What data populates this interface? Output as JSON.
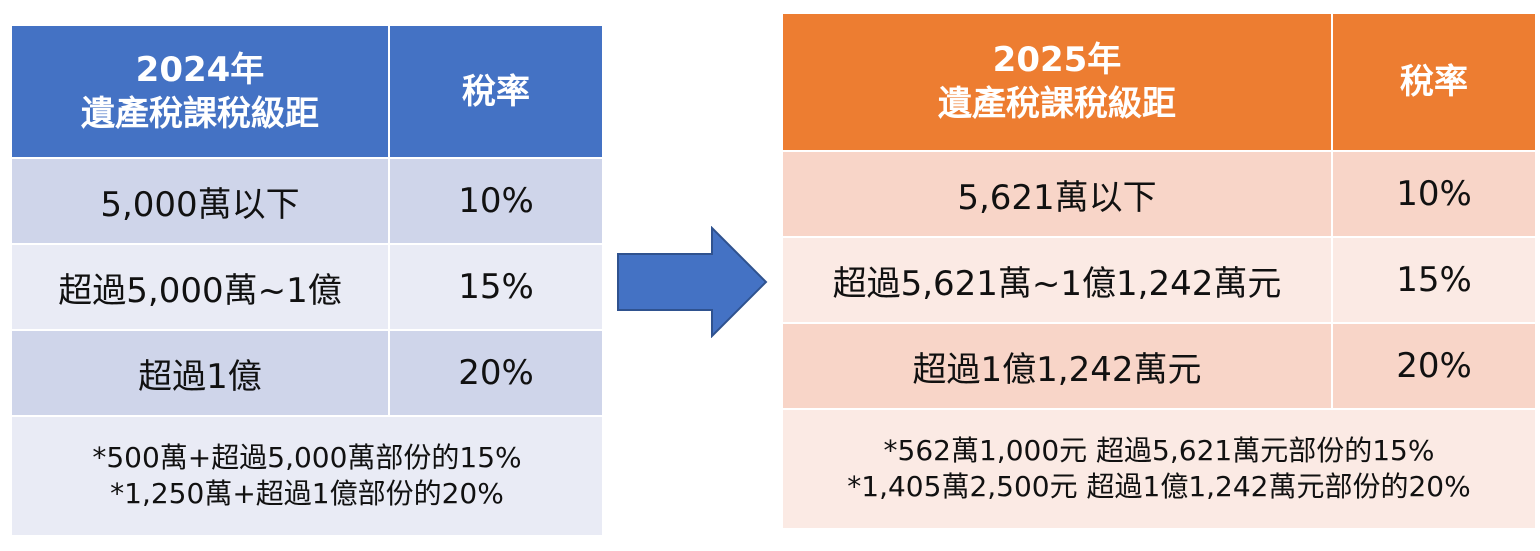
{
  "left_table": {
    "header": {
      "col1_line1": "2024年",
      "col1_line2": "遺產稅課稅級距",
      "col2": "稅率"
    },
    "rows": [
      {
        "bracket": "5,000萬以下",
        "rate": "10%"
      },
      {
        "bracket": "超過5,000萬~1億",
        "rate": "15%"
      },
      {
        "bracket": "超過1億",
        "rate": "20%"
      }
    ],
    "notes": [
      "*500萬+超過5,000萬部份的15%",
      "*1,250萬+超過1億部份的20%"
    ]
  },
  "right_table": {
    "header": {
      "col1_line1": "2025年",
      "col1_line2": "遺產稅課稅級距",
      "col2": "稅率"
    },
    "rows": [
      {
        "bracket": "5,621萬以下",
        "rate": "10%"
      },
      {
        "bracket": "超過5,621萬~1億1,242萬元",
        "rate": "15%"
      },
      {
        "bracket": "超過1億1,242萬元",
        "rate": "20%"
      }
    ],
    "notes": [
      "*562萬1,000元 超過5,621萬元部份的15%",
      "*1,405萬2,500元 超過1億1,242萬元部份的20%"
    ]
  },
  "arrow": {
    "icon": "right-arrow-icon",
    "color": "#4472c4"
  },
  "colors": {
    "left_header": "#4472c4",
    "left_row_dark": "#cfd5ea",
    "left_row_light": "#e9ebf5",
    "right_header": "#ed7d31",
    "right_row_dark": "#f8d5c8",
    "right_row_light": "#fbeae4"
  }
}
